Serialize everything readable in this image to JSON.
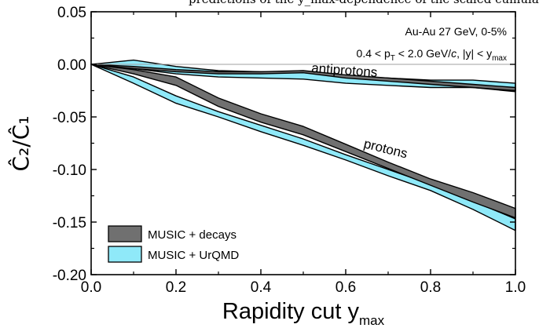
{
  "top_caption": "predictions of the y_max-dependence of the scaled cumulants",
  "chart_data": {
    "type": "area",
    "xlabel": "Rapidity cut y",
    "xlabel_sub": "max",
    "ylabel": "Ĉ₂/Ĉ₁",
    "xlim": [
      0.0,
      1.0
    ],
    "ylim": [
      -0.2,
      0.05
    ],
    "xticks": [
      0.0,
      0.2,
      0.4,
      0.6,
      0.8,
      1.0
    ],
    "xtick_labels": [
      "0.0",
      "0.2",
      "0.4",
      "0.6",
      "0.8",
      "1.0"
    ],
    "yticks": [
      0.05,
      0.0,
      -0.05,
      -0.1,
      -0.15,
      -0.2
    ],
    "ytick_labels": [
      "0.05",
      "0.00",
      "-0.05",
      "-0.10",
      "-0.15",
      "-0.20"
    ],
    "grid": false,
    "reference_line_y": 0.0,
    "annotations": {
      "system": "Au-Au 27 GeV, 0-5%",
      "cuts": "0.4 < p",
      "cuts_sub1": "T",
      "cuts_mid": " < 2.0 GeV/",
      "cuts_c": "c",
      "cuts_end": ", |y| < y",
      "cuts_sub2": "max",
      "antiprotons_label": "antiprotons",
      "protons_label": "protons"
    },
    "legend": {
      "position": "bottom-left",
      "items": [
        {
          "label": "MUSIC + decays",
          "color": "#707070"
        },
        {
          "label": "MUSIC + UrQMD",
          "color": "#8fe9f9"
        }
      ]
    },
    "series": [
      {
        "name": "MUSIC + UrQMD",
        "particle": "protons",
        "color": "#8fe9f9",
        "x": [
          0.0,
          0.1,
          0.2,
          0.3,
          0.4,
          0.5,
          0.6,
          0.7,
          0.8,
          0.9,
          1.0
        ],
        "upper": [
          0.0,
          -0.012,
          -0.03,
          -0.045,
          -0.058,
          -0.071,
          -0.086,
          -0.1,
          -0.114,
          -0.13,
          -0.147
        ],
        "lower": [
          0.0,
          -0.018,
          -0.037,
          -0.05,
          -0.064,
          -0.077,
          -0.091,
          -0.106,
          -0.12,
          -0.138,
          -0.158
        ]
      },
      {
        "name": "MUSIC + decays",
        "particle": "protons",
        "color": "#707070",
        "x": [
          0.0,
          0.1,
          0.2,
          0.3,
          0.4,
          0.5,
          0.6,
          0.7,
          0.8,
          0.9,
          1.0
        ],
        "upper": [
          0.0,
          -0.005,
          -0.012,
          -0.032,
          -0.047,
          -0.059,
          -0.076,
          -0.093,
          -0.109,
          -0.122,
          -0.137
        ],
        "lower": [
          0.0,
          -0.009,
          -0.02,
          -0.04,
          -0.055,
          -0.067,
          -0.083,
          -0.099,
          -0.115,
          -0.131,
          -0.146
        ]
      },
      {
        "name": "MUSIC + UrQMD",
        "particle": "antiprotons",
        "color": "#8fe9f9",
        "x": [
          0.0,
          0.1,
          0.2,
          0.3,
          0.4,
          0.5,
          0.6,
          0.7,
          0.8,
          0.9,
          1.0
        ],
        "upper": [
          0.0,
          0.004,
          -0.002,
          -0.006,
          -0.007,
          -0.008,
          -0.011,
          -0.013,
          -0.015,
          -0.015,
          -0.018
        ],
        "lower": [
          0.0,
          -0.004,
          -0.009,
          -0.012,
          -0.013,
          -0.014,
          -0.018,
          -0.02,
          -0.022,
          -0.022,
          -0.026
        ]
      },
      {
        "name": "MUSIC + decays",
        "particle": "antiprotons",
        "color": "#707070",
        "x": [
          0.0,
          0.1,
          0.2,
          0.3,
          0.4,
          0.5,
          0.6,
          0.7,
          0.8,
          0.9,
          1.0
        ],
        "upper": [
          0.0,
          -0.002,
          -0.005,
          -0.007,
          -0.007,
          -0.006,
          -0.01,
          -0.013,
          -0.016,
          -0.019,
          -0.022
        ],
        "lower": [
          0.0,
          -0.004,
          -0.007,
          -0.009,
          -0.009,
          -0.008,
          -0.013,
          -0.016,
          -0.019,
          -0.022,
          -0.025
        ]
      }
    ]
  }
}
